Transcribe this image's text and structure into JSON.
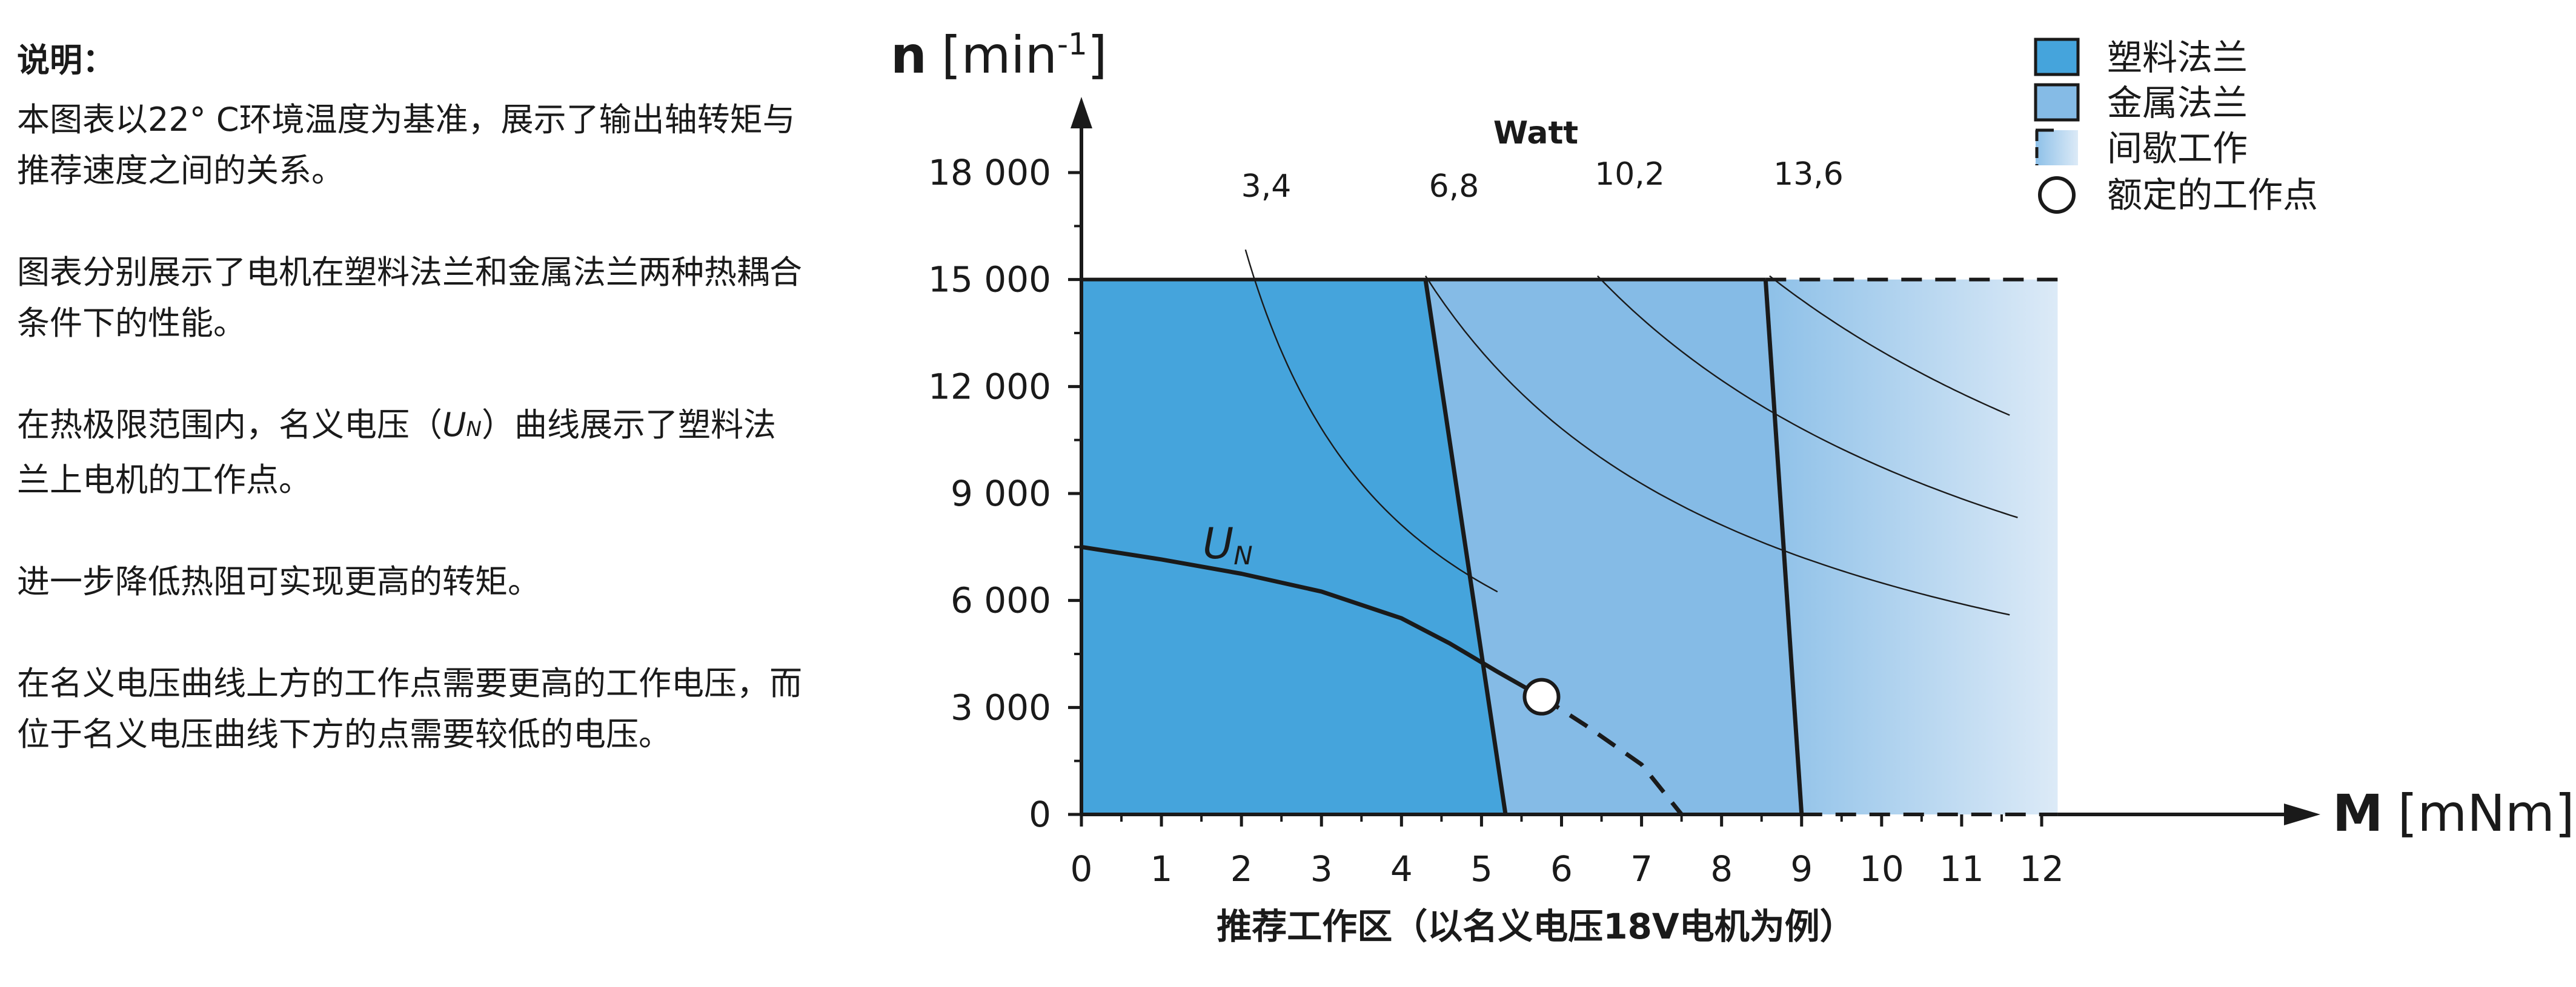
{
  "description": {
    "title": "说明：",
    "p1": "本图表以22° C环境温度为基准，展示了输出轴转矩与推荐速度之间的关系。",
    "p2": "图表分别展示了电机在塑料法兰和金属法兰两种热耦合条件下的性能。",
    "p3_before": "在热极限范围内，名义电压（",
    "p3_var": "U",
    "p3_sub": "N",
    "p3_after": "）曲线展示了塑料法兰上电机的工作点。",
    "p4": "进一步降低热阻可实现更高的转矩。",
    "p5": "在名义电压曲线上方的工作点需要更高的工作电压，而位于名义电压曲线下方的点需要较低的电压。"
  },
  "chart_data": {
    "type": "line",
    "title": "推荐工作区（以名义电压18V电机为例）",
    "y_axis": {
      "label_main": "n",
      "label_unit": "[min",
      "label_exp": "-1",
      "label_close": "]",
      "min": 0,
      "max": 18000,
      "ticks": [
        0,
        3000,
        6000,
        9000,
        12000,
        15000,
        18000
      ],
      "tick_labels": [
        "0",
        "3 000",
        "6 000",
        "9 000",
        "12 000",
        "15 000",
        "18 000"
      ]
    },
    "x_axis": {
      "label_main": "M",
      "label_unit": "[mNm]",
      "min": 0,
      "max": 12,
      "ticks": [
        0,
        1,
        2,
        3,
        4,
        5,
        6,
        7,
        8,
        9,
        10,
        11,
        12
      ],
      "tick_labels": [
        "0",
        "1",
        "2",
        "3",
        "4",
        "5",
        "6",
        "7",
        "8",
        "9",
        "10",
        "11",
        "12"
      ]
    },
    "speed_limit": 15000,
    "regions": [
      {
        "name": "塑料法兰",
        "color": "#45a4dc",
        "boundary": [
          [
            4.3,
            15000
          ],
          [
            5.3,
            0
          ]
        ]
      },
      {
        "name": "金属法兰",
        "color": "#85bbe6",
        "boundary": [
          [
            8.55,
            15000
          ],
          [
            9.0,
            0
          ]
        ]
      },
      {
        "name": "间歇工作",
        "color_from": "#8dc0e8",
        "color_to": "#dceaf7",
        "x_end": 12.2
      }
    ],
    "power_curves": {
      "unit_label": "Watt",
      "series": [
        {
          "name": "3,4",
          "watts": 3.4,
          "x_range": [
            2.05,
            5.2
          ]
        },
        {
          "name": "6,8",
          "watts": 6.8,
          "x_range": [
            4.3,
            11.6
          ]
        },
        {
          "name": "10,2",
          "watts": 10.2,
          "x_range": [
            6.45,
            11.7
          ]
        },
        {
          "name": "13,6",
          "watts": 13.6,
          "x_range": [
            8.6,
            11.6
          ]
        }
      ]
    },
    "nominal_voltage_curve": {
      "name": "U",
      "sub": "N",
      "solid": [
        [
          0,
          7500
        ],
        [
          1,
          7150
        ],
        [
          2,
          6750
        ],
        [
          3,
          6250
        ],
        [
          4,
          5500
        ],
        [
          4.6,
          4800
        ],
        [
          5.2,
          4000
        ],
        [
          5.75,
          3300
        ]
      ],
      "dashed": [
        [
          5.75,
          3300
        ],
        [
          6.3,
          2500
        ],
        [
          7.0,
          1400
        ],
        [
          7.5,
          0
        ]
      ]
    },
    "rated_point": {
      "x": 5.75,
      "y": 3300
    },
    "legend": {
      "position": "top-right",
      "items": [
        {
          "label": "塑料法兰",
          "kind": "swatch",
          "color": "#45a4dc"
        },
        {
          "label": "金属法兰",
          "kind": "swatch",
          "color": "#85bbe6"
        },
        {
          "label": "间歇工作",
          "kind": "gradient"
        },
        {
          "label": "额定的工作点",
          "kind": "circle"
        }
      ]
    }
  }
}
